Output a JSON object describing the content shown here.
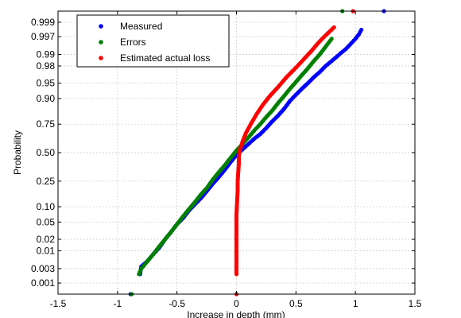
{
  "chart_data": {
    "type": "scatter",
    "title": "",
    "xlabel": "Increase in depth (mm)",
    "ylabel": "Probability",
    "xlim": [
      -1.5,
      1.5
    ],
    "x_ticks": [
      -1.5,
      -1,
      -0.5,
      0,
      0.5,
      1,
      1.5
    ],
    "x_tick_labels": [
      "-1.5",
      "-1",
      "-0.5",
      "0",
      "0.5",
      "1",
      "1.5"
    ],
    "y_scale": "normal-probability",
    "y_ticks": [
      0.001,
      0.003,
      0.01,
      0.02,
      0.05,
      0.1,
      0.25,
      0.5,
      0.75,
      0.9,
      0.95,
      0.98,
      0.99,
      0.997,
      0.999
    ],
    "y_tick_labels": [
      "0.001",
      "0.003",
      "0.01",
      "0.02",
      "0.05",
      "0.10",
      "0.25",
      "0.50",
      "0.75",
      "0.90",
      "0.95",
      "0.98",
      "0.99",
      "0.997",
      "0.999"
    ],
    "grid": true,
    "legend_position": "top-left",
    "series": [
      {
        "name": "Measured",
        "color": "#0000ff",
        "points": [
          [
            -0.89,
            0.0004
          ],
          [
            -0.81,
            0.002
          ],
          [
            -0.8,
            0.0035
          ],
          [
            -0.75,
            0.005
          ],
          [
            -0.7,
            0.008
          ],
          [
            -0.65,
            0.012
          ],
          [
            -0.6,
            0.02
          ],
          [
            -0.55,
            0.03
          ],
          [
            -0.5,
            0.045
          ],
          [
            -0.45,
            0.06
          ],
          [
            -0.4,
            0.085
          ],
          [
            -0.35,
            0.11
          ],
          [
            -0.3,
            0.14
          ],
          [
            -0.25,
            0.18
          ],
          [
            -0.2,
            0.23
          ],
          [
            -0.15,
            0.28
          ],
          [
            -0.1,
            0.34
          ],
          [
            -0.05,
            0.41
          ],
          [
            0.0,
            0.48
          ],
          [
            0.05,
            0.53
          ],
          [
            0.1,
            0.58
          ],
          [
            0.15,
            0.63
          ],
          [
            0.2,
            0.67
          ],
          [
            0.25,
            0.72
          ],
          [
            0.3,
            0.77
          ],
          [
            0.35,
            0.81
          ],
          [
            0.4,
            0.85
          ],
          [
            0.45,
            0.89
          ],
          [
            0.5,
            0.915
          ],
          [
            0.55,
            0.935
          ],
          [
            0.6,
            0.95
          ],
          [
            0.65,
            0.963
          ],
          [
            0.7,
            0.972
          ],
          [
            0.75,
            0.98
          ],
          [
            0.8,
            0.985
          ],
          [
            0.85,
            0.989
          ],
          [
            0.88,
            0.991
          ],
          [
            0.92,
            0.993
          ],
          [
            0.96,
            0.995
          ],
          [
            1.0,
            0.9965
          ],
          [
            1.03,
            0.9975
          ],
          [
            1.05,
            0.9982
          ],
          [
            1.24,
            0.9996
          ]
        ]
      },
      {
        "name": "Errors",
        "color": "#008000",
        "points": [
          [
            -0.88,
            0.0004
          ],
          [
            -0.82,
            0.002
          ],
          [
            -0.8,
            0.003
          ],
          [
            -0.75,
            0.005
          ],
          [
            -0.7,
            0.008
          ],
          [
            -0.65,
            0.013
          ],
          [
            -0.6,
            0.02
          ],
          [
            -0.55,
            0.03
          ],
          [
            -0.5,
            0.045
          ],
          [
            -0.45,
            0.065
          ],
          [
            -0.4,
            0.09
          ],
          [
            -0.35,
            0.12
          ],
          [
            -0.3,
            0.16
          ],
          [
            -0.25,
            0.2
          ],
          [
            -0.2,
            0.26
          ],
          [
            -0.15,
            0.32
          ],
          [
            -0.1,
            0.38
          ],
          [
            -0.05,
            0.45
          ],
          [
            0.0,
            0.52
          ],
          [
            0.05,
            0.58
          ],
          [
            0.1,
            0.64
          ],
          [
            0.15,
            0.7
          ],
          [
            0.2,
            0.75
          ],
          [
            0.25,
            0.8
          ],
          [
            0.3,
            0.84
          ],
          [
            0.35,
            0.88
          ],
          [
            0.4,
            0.91
          ],
          [
            0.45,
            0.935
          ],
          [
            0.5,
            0.953
          ],
          [
            0.55,
            0.967
          ],
          [
            0.6,
            0.977
          ],
          [
            0.65,
            0.985
          ],
          [
            0.7,
            0.99
          ],
          [
            0.75,
            0.994
          ],
          [
            0.8,
            0.9965
          ],
          [
            0.89,
            0.9996
          ]
        ]
      },
      {
        "name": "Estimated actual loss",
        "color": "#ff0000",
        "points": [
          [
            0.0,
            0.0004
          ],
          [
            0.0,
            0.002
          ],
          [
            0.0,
            0.003
          ],
          [
            0.0,
            0.005
          ],
          [
            0.0,
            0.01
          ],
          [
            0.0,
            0.02
          ],
          [
            0.0,
            0.04
          ],
          [
            0.0,
            0.07
          ],
          [
            0.005,
            0.12
          ],
          [
            0.01,
            0.18
          ],
          [
            0.01,
            0.25
          ],
          [
            0.015,
            0.32
          ],
          [
            0.02,
            0.4
          ],
          [
            0.02,
            0.47
          ],
          [
            0.03,
            0.53
          ],
          [
            0.05,
            0.6
          ],
          [
            0.08,
            0.68
          ],
          [
            0.12,
            0.75
          ],
          [
            0.17,
            0.82
          ],
          [
            0.22,
            0.87
          ],
          [
            0.28,
            0.91
          ],
          [
            0.35,
            0.94
          ],
          [
            0.42,
            0.963
          ],
          [
            0.5,
            0.978
          ],
          [
            0.57,
            0.987
          ],
          [
            0.63,
            0.992
          ],
          [
            0.68,
            0.995
          ],
          [
            0.72,
            0.9965
          ],
          [
            0.76,
            0.9975
          ],
          [
            0.82,
            0.9985
          ],
          [
            0.98,
            0.9996
          ]
        ]
      }
    ]
  }
}
